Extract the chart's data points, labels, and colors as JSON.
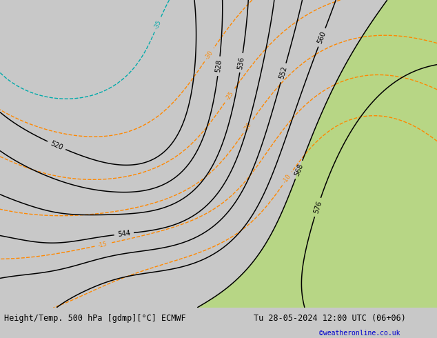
{
  "title_left": "Height/Temp. 500 hPa [gdmp][°C] ECMWF",
  "title_right": "Tu 28-05-2024 12:00 UTC (06+06)",
  "copyright": "©weatheronline.co.uk",
  "bg_color": "#c8c8c8",
  "land_grey": "#c8c8c8",
  "sea_color": "#b8c8d8",
  "green_color": "#b4d97a",
  "bottom_bar_color": "#e0e0e0",
  "bottom_text_color": "#000000",
  "copyright_color": "#0000cc",
  "height_color": "#000000",
  "temp_neg_color": "#ff8800",
  "temp_pos_color": "#228822",
  "temp_cold_color": "#00aaaa",
  "figsize": [
    6.34,
    4.9
  ],
  "dpi": 100,
  "font_size_title": 8.5,
  "font_size_label": 7,
  "font_size_contour": 7
}
